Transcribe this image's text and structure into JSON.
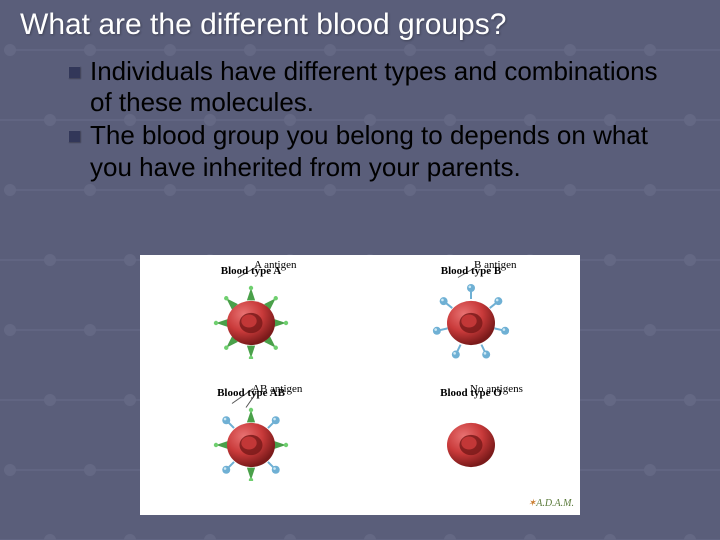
{
  "title": "What are the different blood groups?",
  "bullets": [
    "Individuals have different types and combinations of these molecules.",
    "The blood group you belong to depends on what you have inherited from your parents."
  ],
  "diagram": {
    "background_color": "#ffffff",
    "cell_body_color": "#c93a3a",
    "cell_highlight_color": "#e87272",
    "cell_shadow_color": "#7a1a1a",
    "a_antigen_color_stem": "#4aa04a",
    "a_antigen_color_tip": "#6fcf6f",
    "b_antigen_color": "#6fb0d4",
    "cells": [
      {
        "pos": "tl",
        "antigen_label": "A antigen",
        "type_label": "Blood type A",
        "antigens": [
          "A",
          "A",
          "A",
          "A",
          "A",
          "A",
          "A",
          "A"
        ]
      },
      {
        "pos": "tr",
        "antigen_label": "B antigen",
        "type_label": "Blood type B",
        "antigens": [
          "B",
          "B",
          "B",
          "B",
          "B",
          "B",
          "B"
        ]
      },
      {
        "pos": "bl",
        "antigen_label": "AB antigen",
        "type_label": "Blood type AB",
        "antigens": [
          "A",
          "B",
          "A",
          "B",
          "A",
          "B",
          "A",
          "B"
        ]
      },
      {
        "pos": "br",
        "antigen_label": "No antigens",
        "type_label": "Blood type O",
        "antigens": []
      }
    ],
    "attribution": "A.D.A.M."
  },
  "background": {
    "node_color": "#9ea3c0",
    "line_color": "#8a8fb0"
  }
}
